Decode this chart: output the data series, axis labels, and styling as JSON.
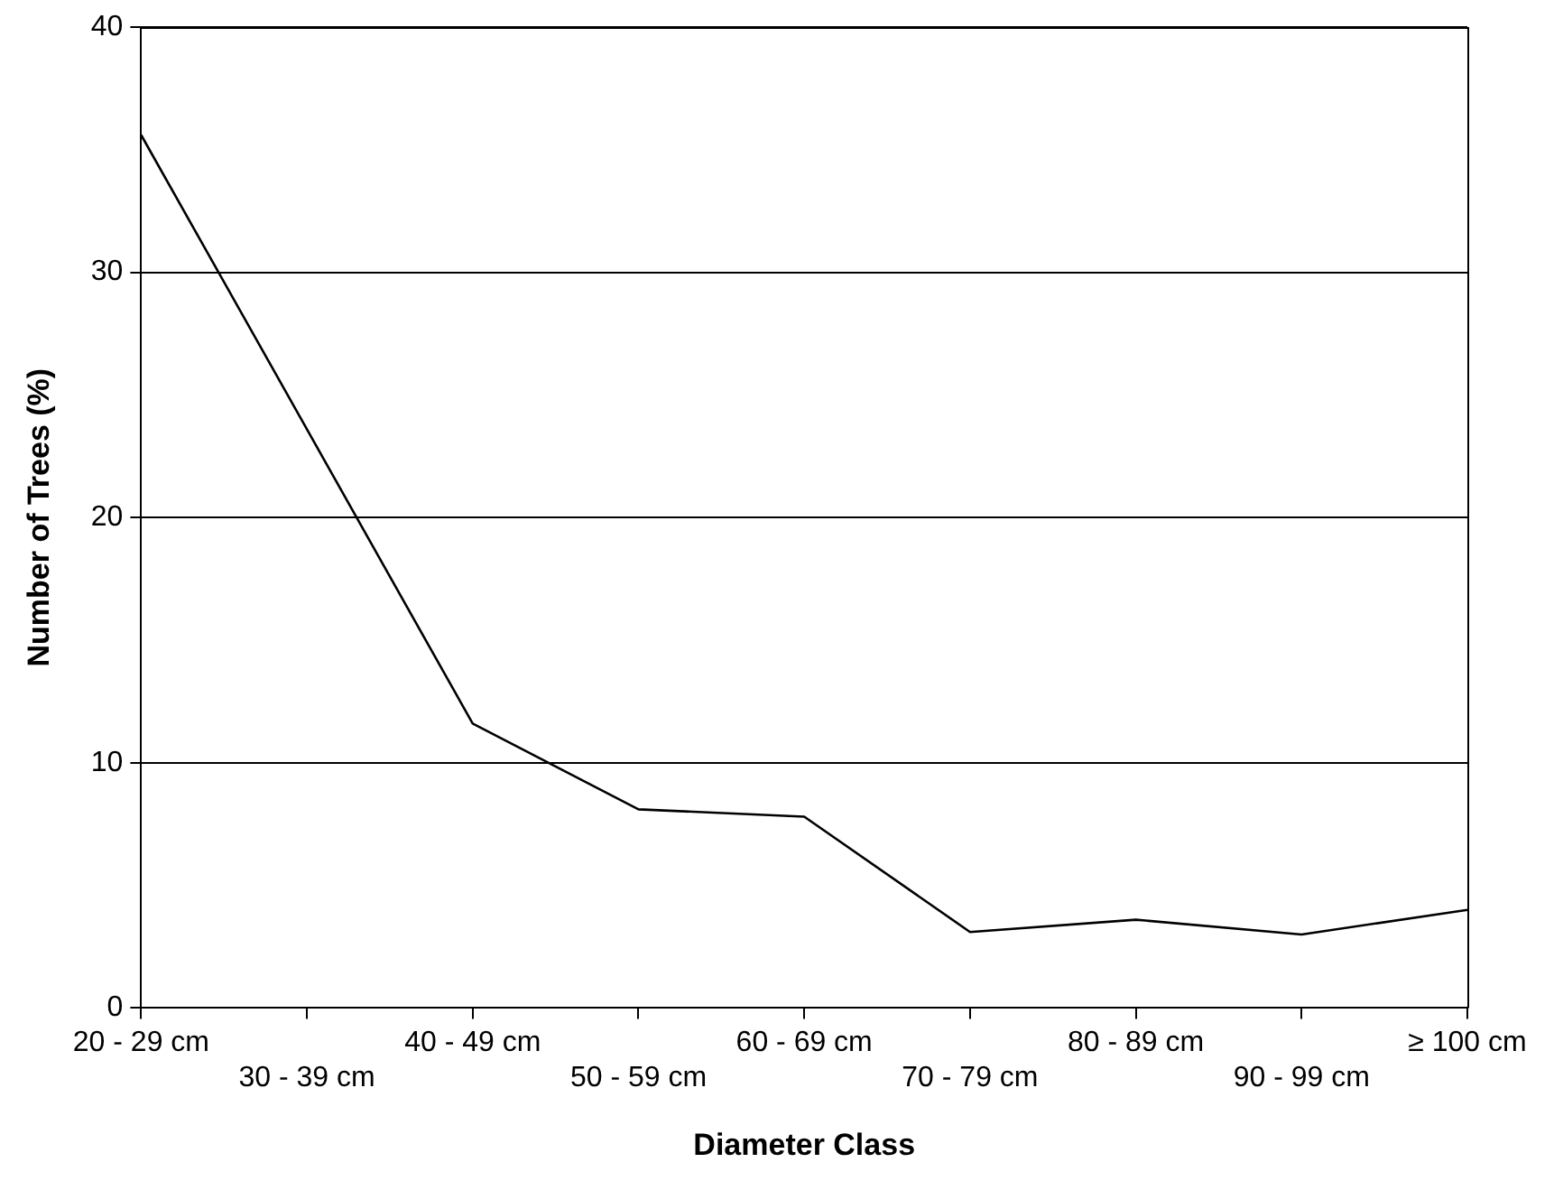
{
  "chart_data": {
    "type": "line",
    "xlabel": "Diameter Class",
    "ylabel": "Number of Trees (%)",
    "categories": [
      "20 - 29 cm",
      "30 - 39 cm",
      "40 - 49 cm",
      "50 - 59 cm",
      "60 - 69 cm",
      "70 - 79 cm",
      "80 - 89 cm",
      "90 - 99 cm",
      "≥ 100 cm"
    ],
    "series": [
      {
        "color": "#000000",
        "values": [
          35.6,
          23.6,
          11.6,
          8.1,
          7.8,
          3.1,
          3.6,
          3.0,
          4.0
        ]
      }
    ],
    "ylim": [
      0,
      40
    ],
    "yticks": [
      0,
      10,
      20,
      30,
      40
    ],
    "grid": "y",
    "legend": false,
    "marker": "none",
    "line_style": "solid"
  }
}
